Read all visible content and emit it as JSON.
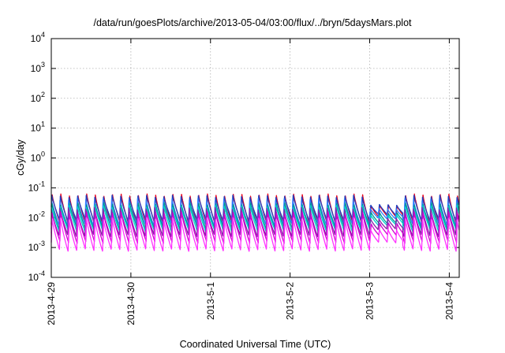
{
  "chart_data": {
    "type": "line",
    "title": "/data/run/goesPlots/archive/2013-05-04/03:00/flux/../bryn/5daysMars.plot",
    "xlabel": "Coordinated Universal Time (UTC)",
    "ylabel": "cGy/day",
    "yscale": "log",
    "ylim": [
      0.0001,
      10000
    ],
    "yticks": [
      {
        "value": 0.0001,
        "base": "10",
        "exp": "-4"
      },
      {
        "value": 0.001,
        "base": "10",
        "exp": "-3"
      },
      {
        "value": 0.01,
        "base": "10",
        "exp": "-2"
      },
      {
        "value": 0.1,
        "base": "10",
        "exp": "-1"
      },
      {
        "value": 1,
        "base": "10",
        "exp": "0"
      },
      {
        "value": 10,
        "base": "10",
        "exp": "1"
      },
      {
        "value": 100,
        "base": "10",
        "exp": "2"
      },
      {
        "value": 1000,
        "base": "10",
        "exp": "3"
      },
      {
        "value": 10000,
        "base": "10",
        "exp": "4"
      }
    ],
    "xlim": [
      "2013-04-29T00:00",
      "2013-05-04T03:00"
    ],
    "xticks": [
      "2013-4-29",
      "2013-4-30",
      "2013-5-1",
      "2013-5-2",
      "2013-5-3",
      "2013-5-4"
    ],
    "grid": true,
    "orbit_period_hours": 2.6,
    "series": [
      {
        "color": "#e8001c",
        "peak": 0.06,
        "trough": 0.006
      },
      {
        "color": "#1f3fbf",
        "peak": 0.055,
        "trough": 0.008
      },
      {
        "color": "#2f7fff",
        "peak": 0.04,
        "trough": 0.006
      },
      {
        "color": "#009e8f",
        "peak": 0.03,
        "trough": 0.004
      },
      {
        "color": "#00d0d0",
        "peak": 0.025,
        "trough": 0.0035
      },
      {
        "color": "#8a1fa8",
        "peak": 0.02,
        "trough": 0.0025
      },
      {
        "color": "#d000d0",
        "peak": 0.015,
        "trough": 0.0015
      },
      {
        "color": "#ff33ff",
        "peak": 0.01,
        "trough": 0.0008
      }
    ]
  }
}
